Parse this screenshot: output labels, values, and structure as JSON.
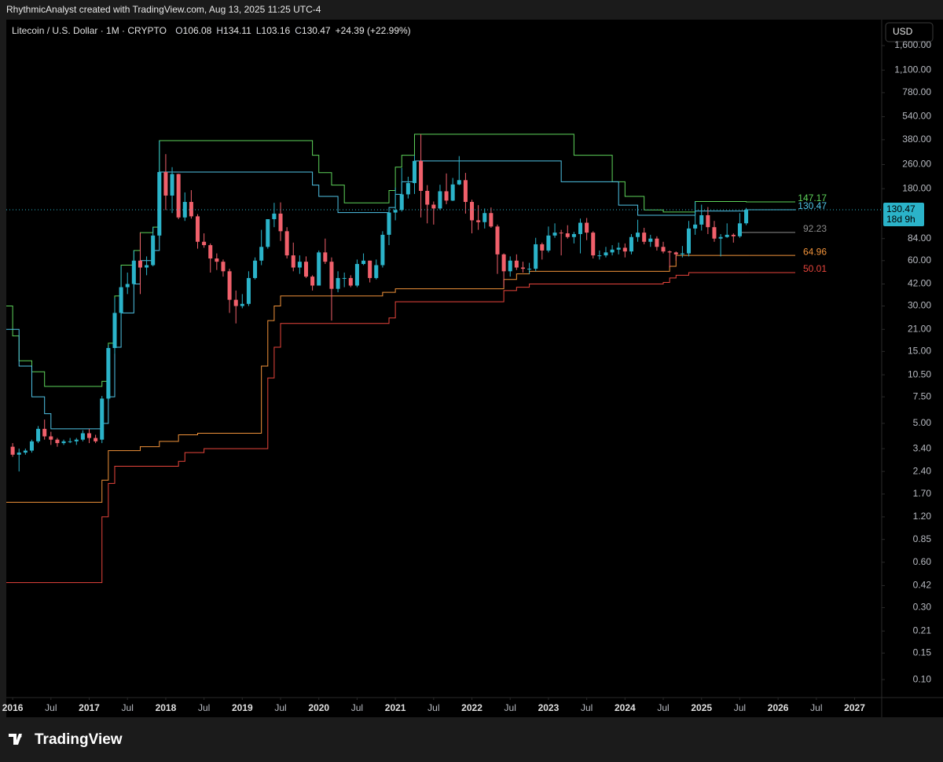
{
  "top_bar": "RhythmicAnalyst created with TradingView.com, Aug 13, 2025 11:25 UTC-4",
  "currency": "USD",
  "brand": "TradingView",
  "chart_data": {
    "type": "candlestick",
    "title": "Litecoin / U.S. Dollar · 1M · CRYPTO",
    "ohlc_header": [
      {
        "label": "O",
        "value": "106.08"
      },
      {
        "label": "H",
        "value": "134.11"
      },
      {
        "label": "L",
        "value": "103.16"
      },
      {
        "label": "C",
        "value": "130.47"
      }
    ],
    "change": "+24.39 (+22.99%)",
    "countdown": "18d 9h",
    "up_color": "#2bb3c9",
    "down_color": "#f0606b",
    "log_scale": true,
    "grid": false,
    "x": [
      "2016-01",
      "2016-02",
      "2016-03",
      "2016-04",
      "2016-05",
      "2016-06",
      "2016-07",
      "2016-08",
      "2016-09",
      "2016-10",
      "2016-11",
      "2016-12",
      "2017-01",
      "2017-02",
      "2017-03",
      "2017-04",
      "2017-05",
      "2017-06",
      "2017-07",
      "2017-08",
      "2017-09",
      "2017-10",
      "2017-11",
      "2017-12",
      "2018-01",
      "2018-02",
      "2018-03",
      "2018-04",
      "2018-05",
      "2018-06",
      "2018-07",
      "2018-08",
      "2018-09",
      "2018-10",
      "2018-11",
      "2018-12",
      "2019-01",
      "2019-02",
      "2019-03",
      "2019-04",
      "2019-05",
      "2019-06",
      "2019-07",
      "2019-08",
      "2019-09",
      "2019-10",
      "2019-11",
      "2019-12",
      "2020-01",
      "2020-02",
      "2020-03",
      "2020-04",
      "2020-05",
      "2020-06",
      "2020-07",
      "2020-08",
      "2020-09",
      "2020-10",
      "2020-11",
      "2020-12",
      "2021-01",
      "2021-02",
      "2021-03",
      "2021-04",
      "2021-05",
      "2021-06",
      "2021-07",
      "2021-08",
      "2021-09",
      "2021-10",
      "2021-11",
      "2021-12",
      "2022-01",
      "2022-02",
      "2022-03",
      "2022-04",
      "2022-05",
      "2022-06",
      "2022-07",
      "2022-08",
      "2022-09",
      "2022-10",
      "2022-11",
      "2022-12",
      "2023-01",
      "2023-02",
      "2023-03",
      "2023-04",
      "2023-05",
      "2023-06",
      "2023-07",
      "2023-08",
      "2023-09",
      "2023-10",
      "2023-11",
      "2023-12",
      "2024-01",
      "2024-02",
      "2024-03",
      "2024-04",
      "2024-05",
      "2024-06",
      "2024-07",
      "2024-08",
      "2024-09",
      "2024-10",
      "2024-11",
      "2024-12",
      "2025-01",
      "2025-02",
      "2025-03",
      "2025-04",
      "2025-05",
      "2025-06",
      "2025-07",
      "2025-08"
    ],
    "open": [
      3.5,
      3.1,
      3.2,
      3.3,
      3.8,
      4.6,
      4.1,
      3.9,
      3.7,
      3.8,
      3.8,
      3.9,
      4.3,
      4.0,
      3.9,
      7.3,
      15.8,
      27,
      40,
      42,
      60,
      54,
      56,
      88,
      232,
      162,
      225,
      116,
      147,
      118,
      80,
      76,
      62,
      59,
      51,
      33,
      30,
      31,
      46,
      60,
      74,
      113,
      123,
      94,
      65,
      54,
      59,
      47,
      41,
      68,
      59,
      39,
      46,
      46,
      41,
      57,
      60,
      46,
      56,
      89,
      125,
      130,
      165,
      196,
      275,
      174,
      141,
      133,
      173,
      150,
      192,
      205,
      147,
      111,
      108,
      124,
      101,
      66,
      51,
      60,
      54,
      53,
      53,
      77,
      70,
      88,
      92,
      91,
      86,
      90,
      107,
      92,
      65,
      65,
      68,
      71,
      73,
      69,
      86,
      92,
      80,
      84,
      74,
      69,
      68,
      66,
      67,
      98,
      104,
      120,
      100,
      84,
      86,
      89,
      87,
      106.08
    ],
    "high": [
      3.7,
      3.4,
      3.4,
      3.9,
      4.8,
      5.3,
      4.4,
      4.0,
      3.9,
      4.0,
      4.0,
      4.5,
      4.6,
      4.2,
      7.6,
      16.5,
      34,
      55,
      50,
      70,
      92,
      64,
      100,
      375,
      305,
      250,
      226,
      170,
      176,
      122,
      91,
      78,
      67,
      61,
      53,
      38,
      36,
      51,
      63,
      96,
      112,
      145,
      146,
      100,
      79,
      65,
      64,
      48,
      70,
      84,
      63,
      51,
      50,
      48,
      61,
      67,
      60,
      61,
      94,
      135,
      183,
      247,
      216,
      300,
      413,
      190,
      148,
      191,
      227,
      212,
      296,
      229,
      152,
      140,
      133,
      135,
      104,
      67,
      64,
      66,
      59,
      58,
      85,
      79,
      101,
      106,
      96,
      103,
      93,
      114,
      115,
      94,
      70,
      74,
      76,
      79,
      78,
      90,
      112,
      99,
      89,
      87,
      80,
      70,
      69,
      75,
      110,
      148,
      141,
      136,
      110,
      90,
      106,
      91,
      124,
      134.11
    ],
    "low": [
      3.0,
      2.4,
      3.1,
      3.2,
      3.7,
      3.9,
      3.6,
      3.5,
      3.6,
      3.7,
      3.6,
      3.8,
      3.7,
      3.7,
      3.7,
      7.0,
      14.5,
      25,
      36,
      40,
      36,
      48,
      55,
      85,
      130,
      124,
      113,
      110,
      114,
      72,
      73,
      50,
      52,
      47,
      27,
      23,
      29,
      30,
      45,
      56,
      72,
      100,
      81,
      62,
      51,
      49,
      46,
      38,
      41,
      57,
      24,
      37,
      40,
      40,
      40,
      56,
      43,
      45,
      54,
      76,
      111,
      127,
      155,
      166,
      116,
      106,
      104,
      130,
      142,
      149,
      190,
      123,
      91,
      96,
      98,
      99,
      49,
      40,
      47,
      52,
      50,
      49,
      51,
      61,
      68,
      85,
      65,
      84,
      78,
      67,
      82,
      62,
      61,
      63,
      65,
      66,
      63,
      66,
      80,
      77,
      74,
      70,
      67,
      54,
      60,
      63,
      64,
      89,
      95,
      90,
      80,
      64,
      85,
      79,
      85,
      103.16
    ],
    "close": [
      3.1,
      3.2,
      3.3,
      3.8,
      4.6,
      4.1,
      3.9,
      3.7,
      3.8,
      3.8,
      3.9,
      4.3,
      4.0,
      3.8,
      7.3,
      15.8,
      27,
      40,
      42,
      60,
      54,
      56,
      88,
      232,
      162,
      225,
      116,
      147,
      118,
      80,
      76,
      62,
      59,
      51,
      33,
      30,
      31,
      46,
      60,
      74,
      113,
      123,
      94,
      65,
      54,
      59,
      47,
      41,
      68,
      59,
      39,
      46,
      46,
      41,
      57,
      60,
      46,
      56,
      89,
      125,
      130,
      165,
      196,
      275,
      174,
      141,
      133,
      173,
      150,
      192,
      205,
      147,
      111,
      108,
      124,
      101,
      66,
      51,
      60,
      54,
      53,
      53,
      77,
      70,
      88,
      92,
      91,
      86,
      90,
      107,
      92,
      65,
      65,
      68,
      71,
      73,
      69,
      86,
      92,
      80,
      84,
      74,
      69,
      68,
      66,
      67,
      98,
      104,
      120,
      100,
      84,
      86,
      89,
      87,
      106,
      130.47
    ],
    "indicators": [
      {
        "color": "#5ed35a",
        "x": [
          "2015-12",
          "2016-01",
          "2016-02",
          "2016-04",
          "2016-06",
          "2017-03",
          "2017-04",
          "2017-05",
          "2017-06",
          "2017-08",
          "2017-09",
          "2017-11",
          "2017-12",
          "2019-12",
          "2020-01",
          "2020-03",
          "2020-05",
          "2020-12",
          "2021-01",
          "2021-02",
          "2021-04",
          "2023-05",
          "2023-11",
          "2024-01",
          "2024-04",
          "2024-07",
          "2024-12",
          "2025-08"
        ],
        "values": [
          30,
          19,
          13,
          11,
          8.8,
          9.5,
          17,
          35,
          56,
          70,
          92,
          100,
          375,
          300,
          230,
          190,
          145,
          175,
          250,
          300,
          413,
          300,
          200,
          160,
          130,
          126,
          148,
          147.17
        ]
      },
      {
        "color": "#4fc3e6",
        "x": [
          "2015-12",
          "2016-02",
          "2016-04",
          "2016-06",
          "2016-07",
          "2017-03",
          "2017-04",
          "2017-05",
          "2017-06",
          "2017-08",
          "2017-09",
          "2017-11",
          "2017-12",
          "2019-12",
          "2020-01",
          "2020-04",
          "2020-12",
          "2021-01",
          "2021-02",
          "2021-04",
          "2023-03",
          "2023-12",
          "2024-03",
          "2024-12",
          "2025-08"
        ],
        "values": [
          21,
          12,
          7.5,
          5.8,
          4.6,
          5.0,
          7.5,
          16,
          27,
          42,
          60,
          70,
          232,
          190,
          160,
          125,
          135,
          165,
          200,
          275,
          200,
          140,
          120,
          128,
          130.47
        ]
      },
      {
        "color": "#8c8c8c",
        "x": [
          "2025-07",
          "2025-08"
        ],
        "values": [
          92.23,
          92.23
        ]
      },
      {
        "color": "#f0923a",
        "x": [
          "2015-12",
          "2017-03",
          "2017-04",
          "2017-09",
          "2017-12",
          "2018-03",
          "2018-06",
          "2019-04",
          "2019-05",
          "2019-06",
          "2019-07",
          "2020-11",
          "2021-01",
          "2022-06",
          "2022-08",
          "2022-10",
          "2024-08",
          "2024-09",
          "2025-08"
        ],
        "values": [
          1.5,
          2.1,
          3.3,
          3.5,
          3.8,
          4.2,
          4.3,
          12,
          24,
          30,
          35,
          37,
          39,
          45,
          49,
          51,
          55,
          64.96,
          64.96
        ]
      },
      {
        "color": "#e8453c",
        "x": [
          "2015-12",
          "2017-03",
          "2017-04",
          "2017-05",
          "2018-03",
          "2018-04",
          "2018-07",
          "2019-05",
          "2019-06",
          "2019-07",
          "2020-12",
          "2021-01",
          "2022-06",
          "2022-08",
          "2022-10",
          "2024-07",
          "2024-08",
          "2024-09",
          "2024-11",
          "2025-08"
        ],
        "values": [
          0.44,
          1.2,
          2.0,
          2.6,
          2.8,
          3.2,
          3.4,
          10,
          16,
          23,
          25,
          32,
          38,
          40,
          42,
          43,
          46,
          48,
          50.01,
          50.01
        ]
      }
    ],
    "xlim": [
      "2015-12",
      "2027-05"
    ],
    "ylim": [
      0.076,
      2377
    ],
    "xticks": [
      {
        "value": "2016-01",
        "label": "2016"
      },
      {
        "value": "2016-07",
        "label": "Jul"
      },
      {
        "value": "2017-01",
        "label": "2017"
      },
      {
        "value": "2017-07",
        "label": "Jul"
      },
      {
        "value": "2018-01",
        "label": "2018"
      },
      {
        "value": "2018-07",
        "label": "Jul"
      },
      {
        "value": "2019-01",
        "label": "2019"
      },
      {
        "value": "2019-07",
        "label": "Jul"
      },
      {
        "value": "2020-01",
        "label": "2020"
      },
      {
        "value": "2020-07",
        "label": "Jul"
      },
      {
        "value": "2021-01",
        "label": "2021"
      },
      {
        "value": "2021-07",
        "label": "Jul"
      },
      {
        "value": "2022-01",
        "label": "2022"
      },
      {
        "value": "2022-07",
        "label": "Jul"
      },
      {
        "value": "2023-01",
        "label": "2023"
      },
      {
        "value": "2023-07",
        "label": "Jul"
      },
      {
        "value": "2024-01",
        "label": "2024"
      },
      {
        "value": "2024-07",
        "label": "Jul"
      },
      {
        "value": "2025-01",
        "label": "2025"
      },
      {
        "value": "2025-07",
        "label": "Jul"
      },
      {
        "value": "2026-01",
        "label": "2026"
      },
      {
        "value": "2026-07",
        "label": "Jul"
      },
      {
        "value": "2027-01",
        "label": "2027"
      }
    ],
    "yticks": [
      {
        "value": 1600,
        "label": "1,600.00"
      },
      {
        "value": 1100,
        "label": "1,100.00"
      },
      {
        "value": 780,
        "label": "780.00"
      },
      {
        "value": 540,
        "label": "540.00"
      },
      {
        "value": 380,
        "label": "380.00"
      },
      {
        "value": 260,
        "label": "260.00"
      },
      {
        "value": 180,
        "label": "180.00"
      },
      {
        "value": 84,
        "label": "84.00"
      },
      {
        "value": 60,
        "label": "60.00"
      },
      {
        "value": 42,
        "label": "42.00"
      },
      {
        "value": 30,
        "label": "30.00"
      },
      {
        "value": 21,
        "label": "21.00"
      },
      {
        "value": 15,
        "label": "15.00"
      },
      {
        "value": 10.5,
        "label": "10.50"
      },
      {
        "value": 7.5,
        "label": "7.50"
      },
      {
        "value": 5,
        "label": "5.00"
      },
      {
        "value": 3.4,
        "label": "3.40"
      },
      {
        "value": 2.4,
        "label": "2.40"
      },
      {
        "value": 1.7,
        "label": "1.70"
      },
      {
        "value": 1.2,
        "label": "1.20"
      },
      {
        "value": 0.85,
        "label": "0.85"
      },
      {
        "value": 0.6,
        "label": "0.60"
      },
      {
        "value": 0.42,
        "label": "0.42"
      },
      {
        "value": 0.3,
        "label": "0.30"
      },
      {
        "value": 0.21,
        "label": "0.21"
      },
      {
        "value": 0.15,
        "label": "0.15"
      },
      {
        "value": 0.1,
        "label": "0.10"
      }
    ]
  }
}
